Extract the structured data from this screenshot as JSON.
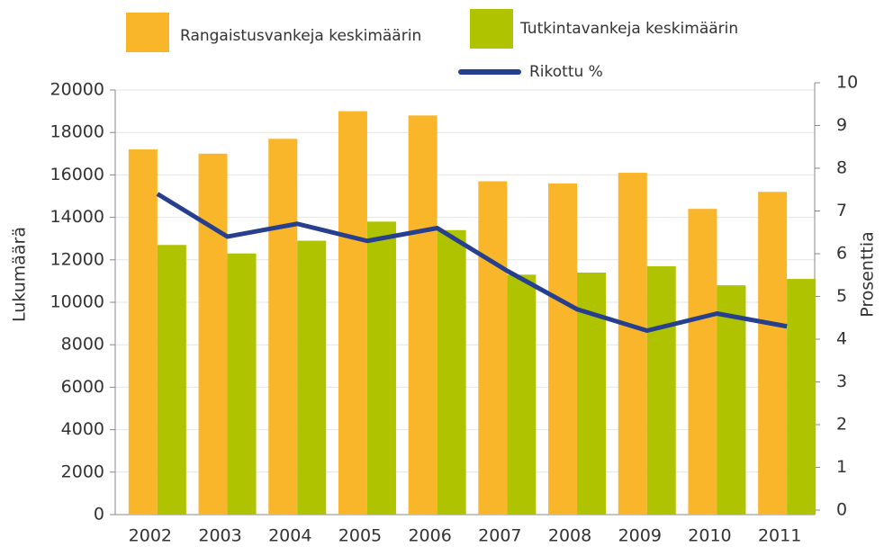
{
  "chart_data": {
    "type": "bar",
    "categories": [
      "2002",
      "2003",
      "2004",
      "2005",
      "2006",
      "2007",
      "2008",
      "2009",
      "2010",
      "2011"
    ],
    "series": [
      {
        "name": "Rangaistusvankeja keskimäärin",
        "color": "#f9b62a",
        "values": [
          17200,
          17000,
          17700,
          19000,
          18800,
          15700,
          15600,
          16100,
          14400,
          15200
        ]
      },
      {
        "name": "Tutkintavankeja keskimäärin",
        "color": "#afc300",
        "values": [
          12700,
          12300,
          12900,
          13800,
          13400,
          11300,
          11400,
          11700,
          10800,
          11100
        ]
      },
      {
        "name": "Rikottu %",
        "color": "#263f8f",
        "type": "line",
        "axis": "y2",
        "values": [
          7.4,
          6.4,
          6.7,
          6.3,
          6.6,
          5.6,
          4.7,
          4.2,
          4.6,
          4.3
        ]
      }
    ],
    "y_label": "Lukumäärä",
    "y2_label": "Prosenttia",
    "ylim": [
      0,
      20000
    ],
    "yticks": [
      0,
      2000,
      4000,
      6000,
      8000,
      10000,
      12000,
      14000,
      16000,
      18000,
      20000
    ],
    "y2lim": [
      0,
      10
    ],
    "y2ticks": [
      0,
      1,
      2,
      3,
      4,
      5,
      6,
      7,
      8,
      9,
      10
    ],
    "grid": true
  }
}
